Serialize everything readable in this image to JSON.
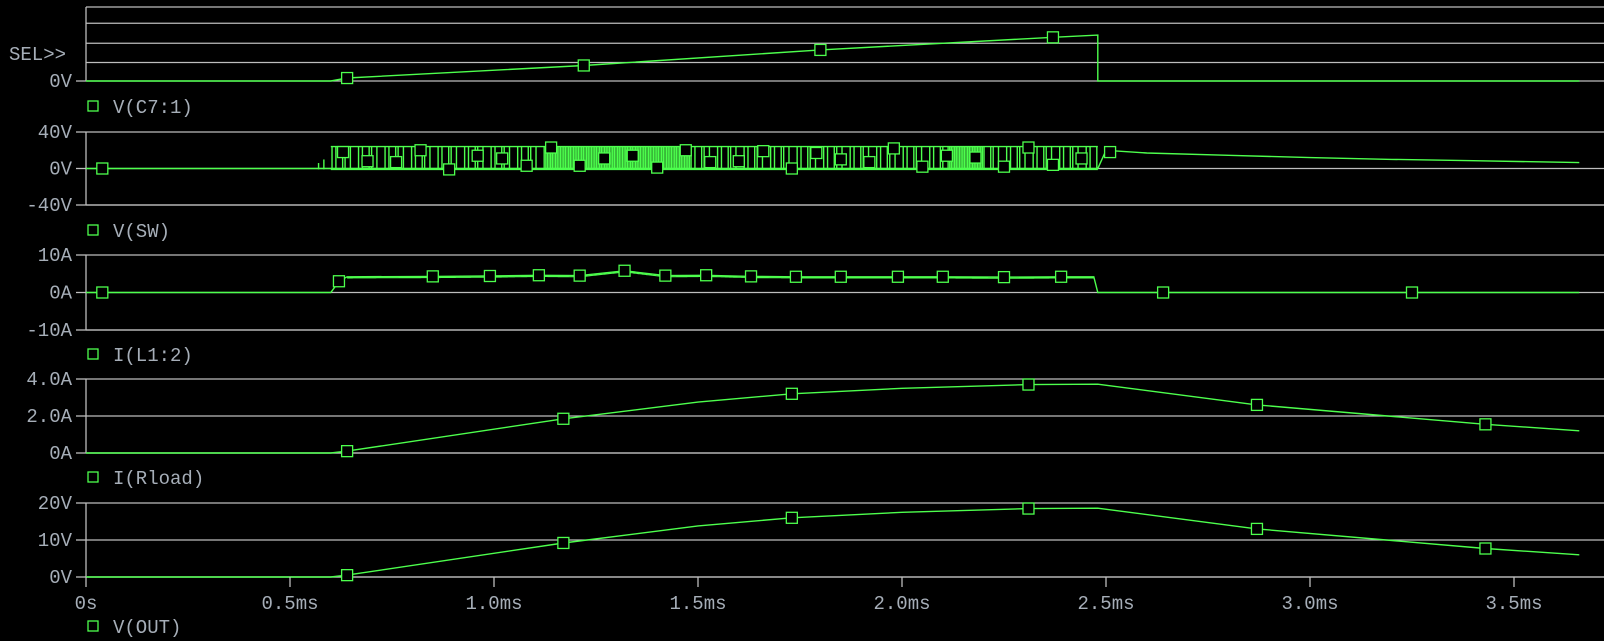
{
  "selector_label": "SEL>>",
  "colors": {
    "background": "#000000",
    "grid": "#bdbdbd",
    "trace": "#4dff4d",
    "text": "#a6aeb8"
  },
  "chart_data": [
    {
      "type": "line",
      "series": [
        {
          "name": "V(C7:1)",
          "marker": "square",
          "x": [
            0,
            0.6,
            0.64,
            1.22,
            1.8,
            2.37,
            2.48,
            2.48,
            3.66
          ],
          "y": [
            0,
            0,
            0.04,
            0.21,
            0.42,
            0.59,
            0.62,
            0,
            0
          ],
          "markers_x": [
            0.64,
            1.22,
            1.8,
            2.37
          ]
        }
      ],
      "yticks": [
        {
          "value": 0,
          "label": "0V"
        }
      ],
      "ylim": [
        0,
        1
      ],
      "grid_values": [
        0.25,
        0.51,
        0.78,
        1
      ],
      "grid": true
    },
    {
      "type": "line",
      "series": [
        {
          "name": "V(SW)",
          "marker": "square",
          "x": [
            0,
            0.57,
            2.48,
            2.5,
            2.6,
            2.8,
            3.0,
            3.2,
            3.4,
            3.66
          ],
          "y": [
            0,
            0,
            0,
            20,
            17,
            14.5,
            12,
            10,
            8.5,
            6.5
          ],
          "switching": {
            "start": 0.57,
            "end": 2.48,
            "high": 24,
            "low": -1
          },
          "markers": [
            [
              0.04,
              0
            ],
            [
              0.63,
              18
            ],
            [
              0.69,
              8
            ],
            [
              0.76,
              7
            ],
            [
              0.82,
              20
            ],
            [
              0.89,
              -1
            ],
            [
              0.96,
              14
            ],
            [
              1.02,
              11
            ],
            [
              1.08,
              3
            ],
            [
              1.14,
              23
            ],
            [
              1.21,
              3
            ],
            [
              1.27,
              11
            ],
            [
              1.34,
              14
            ],
            [
              1.4,
              1
            ],
            [
              1.47,
              20
            ],
            [
              1.53,
              7
            ],
            [
              1.6,
              8
            ],
            [
              1.66,
              19
            ],
            [
              1.73,
              0
            ],
            [
              1.79,
              17
            ],
            [
              1.85,
              10
            ],
            [
              1.92,
              7
            ],
            [
              1.98,
              22
            ],
            [
              2.05,
              2
            ],
            [
              2.11,
              14
            ],
            [
              2.18,
              12
            ],
            [
              2.25,
              2
            ],
            [
              2.31,
              23
            ],
            [
              2.37,
              4
            ],
            [
              2.44,
              11
            ],
            [
              2.51,
              18
            ]
          ]
        }
      ],
      "yticks": [
        {
          "value": 40,
          "label": "40V"
        },
        {
          "value": 0,
          "label": "0V"
        },
        {
          "value": -40,
          "label": "-40V"
        }
      ],
      "ylim": [
        -40,
        40
      ],
      "grid_values": [
        40,
        0,
        -40
      ],
      "grid": true
    },
    {
      "type": "line",
      "series": [
        {
          "name": "I(L1:2)",
          "marker": "square",
          "x": [
            0,
            0.6,
            0.62,
            0.64,
            0.85,
            0.99,
            1.11,
            1.21,
            1.32,
            1.42,
            1.52,
            1.63,
            1.74,
            1.85,
            1.99,
            2.1,
            2.25,
            2.39,
            2.47,
            2.48,
            3.66
          ],
          "y": [
            0,
            0,
            3,
            4.2,
            4.3,
            4.4,
            4.6,
            4.5,
            5.8,
            4.5,
            4.6,
            4.3,
            4.2,
            4.2,
            4.2,
            4.2,
            4.1,
            4.2,
            4.2,
            0,
            0
          ],
          "noise_amplitude": 0.6,
          "markers": [
            [
              0.04,
              0
            ],
            [
              0.62,
              3
            ],
            [
              0.85,
              4.3
            ],
            [
              0.99,
              4.4
            ],
            [
              1.11,
              4.6
            ],
            [
              1.21,
              4.5
            ],
            [
              1.32,
              5.8
            ],
            [
              1.42,
              4.5
            ],
            [
              1.52,
              4.6
            ],
            [
              1.63,
              4.3
            ],
            [
              1.74,
              4.2
            ],
            [
              1.85,
              4.2
            ],
            [
              1.99,
              4.2
            ],
            [
              2.1,
              4.2
            ],
            [
              2.25,
              4.1
            ],
            [
              2.39,
              4.2
            ],
            [
              2.64,
              0
            ],
            [
              3.25,
              0
            ]
          ]
        }
      ],
      "yticks": [
        {
          "value": 10,
          "label": "10A"
        },
        {
          "value": 0,
          "label": "0A"
        },
        {
          "value": -10,
          "label": "-10A"
        }
      ],
      "ylim": [
        -10,
        10
      ],
      "grid_values": [
        10,
        0,
        -10
      ],
      "grid": true
    },
    {
      "type": "line",
      "series": [
        {
          "name": "I(Rload)",
          "marker": "square",
          "x": [
            0,
            0.6,
            0.64,
            1.17,
            1.5,
            1.73,
            2.0,
            2.31,
            2.48,
            2.87,
            3.43,
            3.66
          ],
          "y": [
            0,
            0,
            0.1,
            1.85,
            2.75,
            3.2,
            3.5,
            3.7,
            3.72,
            2.6,
            1.55,
            1.2
          ],
          "markers_x": [
            0.64,
            1.17,
            1.73,
            2.31,
            2.87,
            3.43
          ]
        }
      ],
      "yticks": [
        {
          "value": 4,
          "label": "4.0A"
        },
        {
          "value": 2,
          "label": "2.0A"
        },
        {
          "value": 0,
          "label": "0A"
        }
      ],
      "ylim": [
        0,
        4
      ],
      "grid_values": [
        4,
        2,
        0
      ],
      "grid": true
    },
    {
      "type": "line",
      "series": [
        {
          "name": "V(OUT)",
          "marker": "square",
          "x": [
            0,
            0.6,
            0.64,
            1.17,
            1.5,
            1.73,
            2.0,
            2.31,
            2.48,
            2.87,
            3.43,
            3.66
          ],
          "y": [
            0,
            0,
            0.5,
            9.2,
            13.8,
            16,
            17.5,
            18.5,
            18.6,
            13,
            7.7,
            6
          ],
          "markers_x": [
            0.64,
            1.17,
            1.73,
            2.31,
            2.87,
            3.43
          ]
        }
      ],
      "yticks": [
        {
          "value": 20,
          "label": "20V"
        },
        {
          "value": 10,
          "label": "10V"
        },
        {
          "value": 0,
          "label": "0V"
        }
      ],
      "ylim": [
        0,
        20
      ],
      "grid_values": [
        20,
        10,
        0
      ],
      "grid": true,
      "xticks": [
        {
          "value": 0,
          "label": "0s"
        },
        {
          "value": 0.5,
          "label": "0.5ms"
        },
        {
          "value": 1.0,
          "label": "1.0ms"
        },
        {
          "value": 1.5,
          "label": "1.5ms"
        },
        {
          "value": 2.0,
          "label": "2.0ms"
        },
        {
          "value": 2.5,
          "label": "2.5ms"
        },
        {
          "value": 3.0,
          "label": "3.0ms"
        },
        {
          "value": 3.5,
          "label": "3.5ms"
        }
      ],
      "xlim": [
        0,
        3.71
      ]
    }
  ]
}
